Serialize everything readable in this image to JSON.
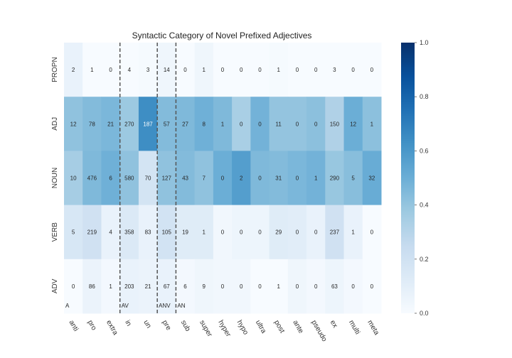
{
  "chart_data": {
    "type": "heatmap",
    "title": "Syntactic Category of Novel Prefixed Adjectives",
    "columns": [
      "anti",
      "pro",
      "extra",
      "in",
      "un",
      "pre",
      "sub",
      "super",
      "hyper",
      "hypo",
      "ultra",
      "post",
      "ante",
      "pseudo",
      "ex",
      "multi",
      "meta"
    ],
    "rows": [
      "PROPN",
      "ADJ",
      "NOUN",
      "VERB",
      "ADV"
    ],
    "counts": [
      [
        2,
        1,
        0,
        4,
        3,
        14,
        0,
        1,
        0,
        0,
        0,
        1,
        0,
        0,
        3,
        0,
        0
      ],
      [
        12,
        78,
        21,
        270,
        187,
        57,
        27,
        8,
        1,
        0,
        0,
        11,
        0,
        0,
        150,
        12,
        1
      ],
      [
        10,
        476,
        6,
        580,
        70,
        127,
        43,
        7,
        0,
        2,
        0,
        31,
        0,
        1,
        290,
        5,
        32
      ],
      [
        5,
        219,
        4,
        358,
        83,
        105,
        19,
        1,
        0,
        0,
        0,
        29,
        0,
        0,
        237,
        1,
        0
      ],
      [
        0,
        86,
        1,
        203,
        21,
        67,
        6,
        9,
        0,
        0,
        0,
        1,
        0,
        0,
        63,
        0,
        0
      ]
    ],
    "intensity": [
      [
        0.07,
        0.0,
        0.0,
        0.0,
        0.01,
        0.04,
        0.0,
        0.04,
        0.0,
        0.0,
        0.0,
        0.01,
        0.0,
        0.0,
        0.0,
        0.0,
        0.0
      ],
      [
        0.41,
        0.44,
        0.46,
        0.38,
        0.64,
        0.44,
        0.45,
        0.49,
        0.45,
        0.34,
        0.48,
        0.4,
        0.4,
        0.42,
        0.32,
        0.5,
        0.42
      ],
      [
        0.35,
        0.45,
        0.49,
        0.41,
        0.18,
        0.41,
        0.44,
        0.41,
        0.5,
        0.57,
        0.45,
        0.44,
        0.46,
        0.48,
        0.39,
        0.43,
        0.51
      ],
      [
        0.16,
        0.2,
        0.07,
        0.14,
        0.07,
        0.19,
        0.12,
        0.12,
        0.03,
        0.05,
        0.05,
        0.12,
        0.11,
        0.07,
        0.2,
        0.07,
        0.0
      ],
      [
        0.0,
        0.06,
        0.02,
        0.07,
        0.06,
        0.07,
        0.02,
        0.04,
        0.03,
        0.03,
        0.0,
        0.0,
        0.04,
        0.02,
        0.05,
        0.02,
        0.0
      ]
    ],
    "colorbar": {
      "min": 0.0,
      "max": 1.0,
      "ticks": [
        "0.0",
        "0.2",
        "0.4",
        "0.6",
        "0.8",
        "1.0"
      ]
    },
    "colorscale": [
      "#f7fbff",
      "#deebf7",
      "#c6dbef",
      "#9ecae1",
      "#6baed6",
      "#4292c6",
      "#2171b5",
      "#08519c",
      "#08306b"
    ],
    "group_dividers_after_column": [
      2,
      4,
      5
    ],
    "group_labels": [
      {
        "label": "A",
        "column": 0
      },
      {
        "label": "AV",
        "column": 3
      },
      {
        "label": "ANV",
        "column": 5
      },
      {
        "label": "AN",
        "column": 6
      }
    ]
  }
}
